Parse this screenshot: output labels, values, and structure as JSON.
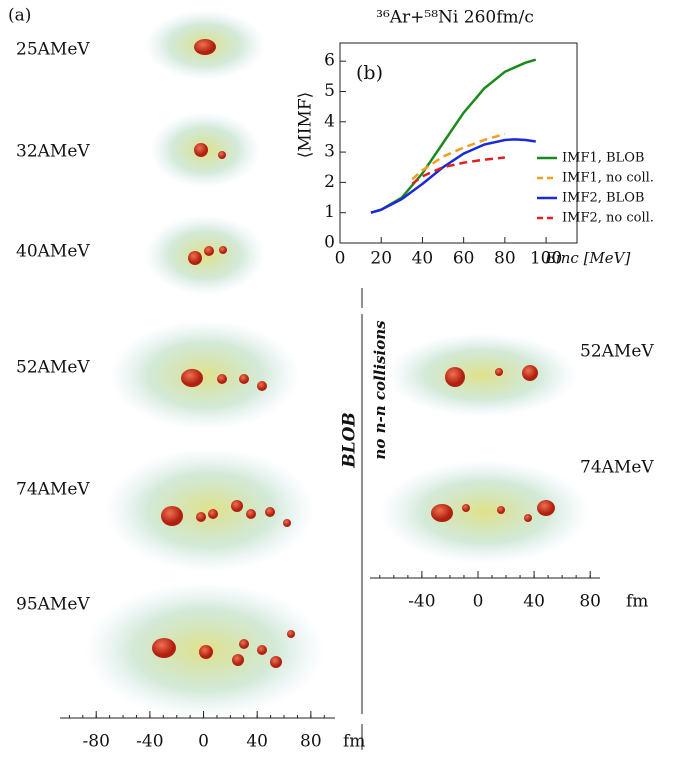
{
  "chart_data": {
    "type": "line",
    "title": "³⁶Ar+⁵⁸Ni  260fm/c",
    "panel_label": "(b)",
    "xlabel": "Einc [MeV]",
    "ylabel": "⟨MIMF⟩",
    "xlim": [
      0,
      115
    ],
    "xticks": [
      0,
      20,
      40,
      60,
      80,
      100
    ],
    "ylim": [
      0,
      6.6
    ],
    "yticks": [
      0,
      1,
      2,
      3,
      4,
      5,
      6
    ],
    "series": [
      {
        "name": "IMF1, BLOB",
        "color": "#1a8a1a",
        "dash": false,
        "x": [
          15,
          20,
          30,
          40,
          50,
          60,
          70,
          80,
          90,
          95
        ],
        "values": [
          1.0,
          1.1,
          1.5,
          2.3,
          3.3,
          4.3,
          5.1,
          5.65,
          5.95,
          6.05
        ]
      },
      {
        "name": "IMF1, no coll.",
        "color": "#f0a020",
        "dash": true,
        "x": [
          35,
          40,
          50,
          60,
          70,
          80
        ],
        "values": [
          2.1,
          2.4,
          2.85,
          3.15,
          3.4,
          3.6
        ]
      },
      {
        "name": "IMF2, BLOB",
        "color": "#1a2ad8",
        "dash": false,
        "x": [
          15,
          20,
          30,
          40,
          50,
          60,
          70,
          80,
          85,
          90,
          95
        ],
        "values": [
          1.0,
          1.1,
          1.45,
          1.95,
          2.5,
          2.95,
          3.25,
          3.4,
          3.42,
          3.4,
          3.35
        ]
      },
      {
        "name": "IMF2, no coll.",
        "color": "#e02020",
        "dash": true,
        "x": [
          35,
          40,
          50,
          60,
          70,
          80
        ],
        "values": [
          1.95,
          2.2,
          2.5,
          2.65,
          2.75,
          2.82
        ]
      }
    ]
  },
  "panel_a": {
    "label": "(a)",
    "energies": [
      "25AMeV",
      "32AMeV",
      "40AMeV",
      "52AMeV",
      "74AMeV",
      "95AMeV"
    ],
    "left_axis": {
      "xlim": [
        -107,
        98
      ],
      "xticks": [
        -80,
        -40,
        0,
        40,
        80
      ],
      "unit": "fm"
    },
    "right_axis": {
      "xlim": [
        -77,
        87
      ],
      "xticks": [
        -40,
        0,
        40,
        80
      ],
      "unit": "fm"
    },
    "right_energies": [
      "52AMeV",
      "74AMeV"
    ],
    "blob_label": "BLOB",
    "nocoll_label": "no n-n collisions"
  }
}
